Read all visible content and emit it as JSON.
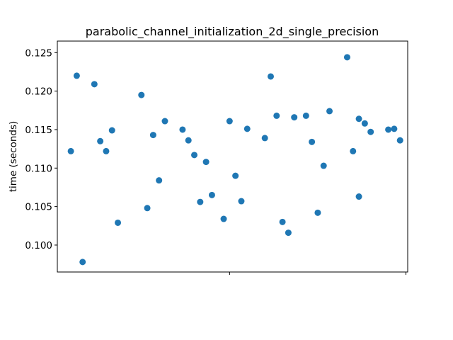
{
  "chart_data": {
    "type": "scatter",
    "title": "parabolic_channel_initialization_2d_single_precision",
    "xlabel": "",
    "ylabel": "time (seconds)",
    "ylim": [
      0.0965,
      0.1265
    ],
    "xlim": [
      -2.3,
      57.3
    ],
    "yticks": [
      "0.100",
      "0.105",
      "0.110",
      "0.115",
      "0.120",
      "0.125"
    ],
    "ytick_values": [
      0.1,
      0.105,
      0.11,
      0.115,
      0.12,
      0.125
    ],
    "xtick_values": [
      27,
      57
    ],
    "xtick_labels_visible": false,
    "grid": false,
    "marker_color": "#1f77b4",
    "series": [
      {
        "x": [
          0,
          1,
          2,
          4,
          5,
          6,
          7,
          8,
          12,
          13,
          14,
          15,
          16,
          19,
          20,
          21,
          22,
          23,
          24,
          26,
          27,
          28,
          29,
          30,
          33,
          34,
          35,
          36,
          37,
          38,
          40,
          41,
          42,
          43,
          44,
          47,
          48,
          49,
          49,
          50,
          51,
          54,
          55,
          56
        ],
        "values": [
          0.1122,
          0.122,
          0.0978,
          0.1209,
          0.1135,
          0.1122,
          0.1149,
          0.1029,
          0.1195,
          0.1048,
          0.1143,
          0.1084,
          0.1161,
          0.115,
          0.1136,
          0.1117,
          0.1056,
          0.1108,
          0.1065,
          0.1034,
          0.1161,
          0.109,
          0.1057,
          0.1151,
          0.1139,
          0.1219,
          0.1168,
          0.103,
          0.1016,
          0.1166,
          0.1168,
          0.1134,
          0.1042,
          0.1103,
          0.1174,
          0.1244,
          0.1122,
          0.1164,
          0.1063,
          0.1158,
          0.1147,
          0.115,
          0.1151,
          0.1136
        ]
      }
    ]
  }
}
